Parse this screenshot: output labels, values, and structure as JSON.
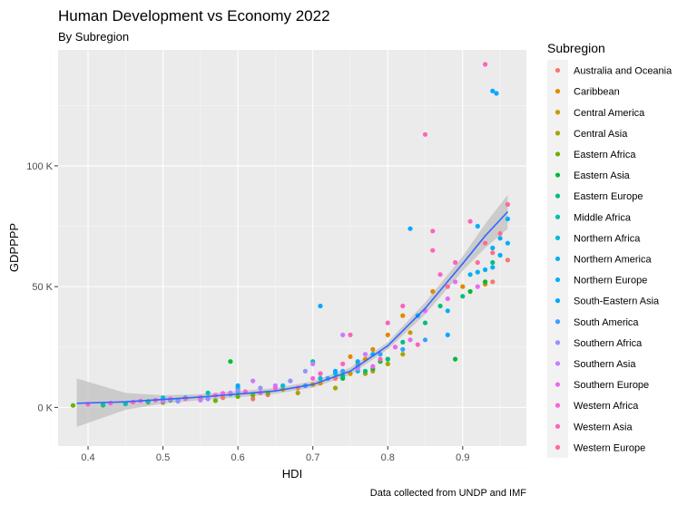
{
  "chart_data": {
    "type": "scatter",
    "title": "Human Development vs Economy 2022",
    "subtitle": "By Subregion",
    "xlabel": "HDI",
    "ylabel": "GDPPPP",
    "caption": "Data collected from UNDP and IMF",
    "xlim": [
      0.36,
      0.985
    ],
    "ylim": [
      -16000,
      148000
    ],
    "x_ticks": [
      0.4,
      0.5,
      0.6,
      0.7,
      0.8,
      0.9
    ],
    "x_tick_labels": [
      "0.4",
      "0.5",
      "0.6",
      "0.7",
      "0.8",
      "0.9"
    ],
    "y_ticks": [
      0,
      50000,
      100000
    ],
    "y_tick_labels": [
      "0 K",
      "50 K",
      "100 K"
    ],
    "grid": true,
    "legend": {
      "title": "Subregion",
      "position": "right"
    },
    "smooth": {
      "method": "loess",
      "color": "#3366FF",
      "band_color": "#bdbdbd",
      "line": [
        [
          0.385,
          1700
        ],
        [
          0.45,
          2300
        ],
        [
          0.5,
          3300
        ],
        [
          0.55,
          4300
        ],
        [
          0.6,
          5500
        ],
        [
          0.65,
          6800
        ],
        [
          0.7,
          9500
        ],
        [
          0.75,
          15000
        ],
        [
          0.8,
          25500
        ],
        [
          0.85,
          41000
        ],
        [
          0.9,
          59500
        ],
        [
          0.93,
          71000
        ],
        [
          0.96,
          81000
        ]
      ],
      "upper": [
        [
          0.385,
          12000
        ],
        [
          0.45,
          6000
        ],
        [
          0.5,
          5000
        ],
        [
          0.55,
          5500
        ],
        [
          0.6,
          6800
        ],
        [
          0.65,
          8000
        ],
        [
          0.7,
          10800
        ],
        [
          0.75,
          16500
        ],
        [
          0.8,
          27000
        ],
        [
          0.85,
          43500
        ],
        [
          0.9,
          62500
        ],
        [
          0.93,
          76000
        ],
        [
          0.96,
          88000
        ]
      ],
      "lower": [
        [
          0.385,
          -8000
        ],
        [
          0.45,
          -1000
        ],
        [
          0.5,
          1600
        ],
        [
          0.55,
          3000
        ],
        [
          0.6,
          4200
        ],
        [
          0.65,
          5600
        ],
        [
          0.7,
          8200
        ],
        [
          0.75,
          13500
        ],
        [
          0.8,
          24000
        ],
        [
          0.85,
          38500
        ],
        [
          0.9,
          56500
        ],
        [
          0.93,
          66000
        ],
        [
          0.96,
          74000
        ]
      ]
    },
    "series": [
      {
        "name": "Australia and Oceania",
        "color": "#F8766D",
        "points": [
          [
            0.96,
            61000
          ],
          [
            0.94,
            52000
          ],
          [
            0.55,
            3200
          ],
          [
            0.58,
            4000
          ],
          [
            0.62,
            3500
          ],
          [
            0.64,
            5200
          ],
          [
            0.68,
            8000
          ],
          [
            0.73,
            12000
          ]
        ]
      },
      {
        "name": "Caribbean",
        "color": "#E58700",
        "points": [
          [
            0.75,
            21000
          ],
          [
            0.76,
            18000
          ],
          [
            0.77,
            20000
          ],
          [
            0.78,
            24000
          ],
          [
            0.8,
            30000
          ],
          [
            0.82,
            38000
          ],
          [
            0.86,
            48000
          ],
          [
            0.9,
            50000
          ],
          [
            0.93,
            51000
          ],
          [
            0.71,
            10000
          ]
        ]
      },
      {
        "name": "Central America",
        "color": "#C99800",
        "points": [
          [
            0.66,
            7500
          ],
          [
            0.7,
            9500
          ],
          [
            0.72,
            12000
          ],
          [
            0.75,
            14000
          ],
          [
            0.78,
            15000
          ],
          [
            0.81,
            25000
          ],
          [
            0.83,
            31000
          ]
        ]
      },
      {
        "name": "Central Asia",
        "color": "#A3A500",
        "points": [
          [
            0.68,
            6000
          ],
          [
            0.73,
            8000
          ],
          [
            0.77,
            14000
          ],
          [
            0.8,
            18000
          ],
          [
            0.82,
            22000
          ]
        ]
      },
      {
        "name": "Eastern Africa",
        "color": "#6BB100",
        "points": [
          [
            0.38,
            800
          ],
          [
            0.42,
            900
          ],
          [
            0.45,
            1500
          ],
          [
            0.48,
            2200
          ],
          [
            0.5,
            2000
          ],
          [
            0.52,
            3000
          ],
          [
            0.55,
            3500
          ],
          [
            0.57,
            2800
          ],
          [
            0.6,
            4500
          ],
          [
            0.62,
            5000
          ],
          [
            0.64,
            6000
          ],
          [
            0.8,
            20000
          ]
        ]
      },
      {
        "name": "Eastern Asia",
        "color": "#00BA38",
        "points": [
          [
            0.59,
            19000
          ],
          [
            0.74,
            12000
          ],
          [
            0.78,
            16000
          ],
          [
            0.79,
            19000
          ],
          [
            0.89,
            20000
          ],
          [
            0.91,
            48000
          ],
          [
            0.93,
            52000
          ]
        ]
      },
      {
        "name": "Eastern Europe",
        "color": "#00BF7D",
        "points": [
          [
            0.74,
            13000
          ],
          [
            0.77,
            15000
          ],
          [
            0.8,
            20000
          ],
          [
            0.82,
            27000
          ],
          [
            0.85,
            35000
          ],
          [
            0.87,
            42000
          ],
          [
            0.9,
            46000
          ],
          [
            0.94,
            60000
          ]
        ]
      },
      {
        "name": "Middle Africa",
        "color": "#00C0AF",
        "points": [
          [
            0.42,
            1200
          ],
          [
            0.45,
            1500
          ],
          [
            0.48,
            2500
          ],
          [
            0.51,
            3000
          ],
          [
            0.53,
            4000
          ],
          [
            0.56,
            6000
          ],
          [
            0.59,
            5500
          ],
          [
            0.6,
            8000
          ],
          [
            0.7,
            19000
          ]
        ]
      },
      {
        "name": "Northern Africa",
        "color": "#00BCD8",
        "points": [
          [
            0.5,
            4000
          ],
          [
            0.6,
            6500
          ],
          [
            0.66,
            9000
          ],
          [
            0.71,
            12000
          ],
          [
            0.73,
            14000
          ],
          [
            0.76,
            15000
          ]
        ]
      },
      {
        "name": "Northern America",
        "color": "#00B0F6",
        "points": [
          [
            0.92,
            56000
          ],
          [
            0.94,
            66000
          ],
          [
            0.96,
            78000
          ],
          [
            0.95,
            70000
          ]
        ]
      },
      {
        "name": "Northern Europe",
        "color": "#00B0F6",
        "points": [
          [
            0.88,
            40000
          ],
          [
            0.91,
            55000
          ],
          [
            0.92,
            75000
          ],
          [
            0.93,
            57000
          ],
          [
            0.94,
            58000
          ],
          [
            0.95,
            63000
          ],
          [
            0.96,
            68000
          ]
        ]
      },
      {
        "name": "South-Eastern Asia",
        "color": "#00A9FF",
        "points": [
          [
            0.6,
            9000
          ],
          [
            0.71,
            42000
          ],
          [
            0.73,
            15000
          ],
          [
            0.76,
            19000
          ],
          [
            0.78,
            22000
          ],
          [
            0.83,
            74000
          ],
          [
            0.84,
            38000
          ],
          [
            0.88,
            30000
          ],
          [
            0.94,
            131000
          ],
          [
            0.945,
            130000
          ]
        ]
      },
      {
        "name": "South America",
        "color": "#35A2FF",
        "points": [
          [
            0.69,
            9000
          ],
          [
            0.72,
            12000
          ],
          [
            0.74,
            15000
          ],
          [
            0.76,
            17000
          ],
          [
            0.79,
            22000
          ],
          [
            0.82,
            24000
          ],
          [
            0.85,
            28000
          ]
        ]
      },
      {
        "name": "Southern Africa",
        "color": "#9590FF",
        "points": [
          [
            0.52,
            2500
          ],
          [
            0.56,
            3500
          ],
          [
            0.6,
            7000
          ],
          [
            0.63,
            8000
          ],
          [
            0.67,
            11000
          ],
          [
            0.69,
            15000
          ]
        ]
      },
      {
        "name": "Southern Asia",
        "color": "#C77CFF",
        "points": [
          [
            0.5,
            2500
          ],
          [
            0.55,
            3000
          ],
          [
            0.59,
            6000
          ],
          [
            0.62,
            11000
          ],
          [
            0.65,
            9000
          ],
          [
            0.7,
            18000
          ],
          [
            0.74,
            30000
          ],
          [
            0.76,
            16000
          ],
          [
            0.77,
            22000
          ]
        ]
      },
      {
        "name": "Southern Europe",
        "color": "#E76BF3",
        "points": [
          [
            0.78,
            17000
          ],
          [
            0.81,
            25000
          ],
          [
            0.83,
            28000
          ],
          [
            0.85,
            40000
          ],
          [
            0.88,
            45000
          ],
          [
            0.89,
            52000
          ],
          [
            0.92,
            50000
          ]
        ]
      },
      {
        "name": "Western Africa",
        "color": "#FA62DB",
        "points": [
          [
            0.4,
            1300
          ],
          [
            0.43,
            1800
          ],
          [
            0.46,
            2200
          ],
          [
            0.47,
            2700
          ],
          [
            0.49,
            3000
          ],
          [
            0.51,
            3500
          ],
          [
            0.53,
            3600
          ],
          [
            0.55,
            4200
          ],
          [
            0.57,
            5000
          ],
          [
            0.58,
            5800
          ],
          [
            0.61,
            6500
          ],
          [
            0.65,
            8000
          ],
          [
            0.7,
            12000
          ],
          [
            0.71,
            14000
          ]
        ]
      },
      {
        "name": "Western Asia",
        "color": "#FF62BC",
        "points": [
          [
            0.63,
            6000
          ],
          [
            0.71,
            14000
          ],
          [
            0.74,
            18000
          ],
          [
            0.75,
            30000
          ],
          [
            0.79,
            20000
          ],
          [
            0.8,
            35000
          ],
          [
            0.82,
            42000
          ],
          [
            0.84,
            26000
          ],
          [
            0.85,
            113000
          ],
          [
            0.86,
            65000
          ],
          [
            0.87,
            55000
          ],
          [
            0.89,
            60000
          ],
          [
            0.91,
            77000
          ],
          [
            0.93,
            142000
          ],
          [
            0.86,
            73000
          ]
        ]
      },
      {
        "name": "Western Europe",
        "color": "#FF6C91",
        "points": [
          [
            0.92,
            60000
          ],
          [
            0.94,
            64000
          ],
          [
            0.95,
            72000
          ],
          [
            0.96,
            84000
          ],
          [
            0.93,
            68000
          ],
          [
            0.88,
            50000
          ]
        ]
      }
    ]
  }
}
